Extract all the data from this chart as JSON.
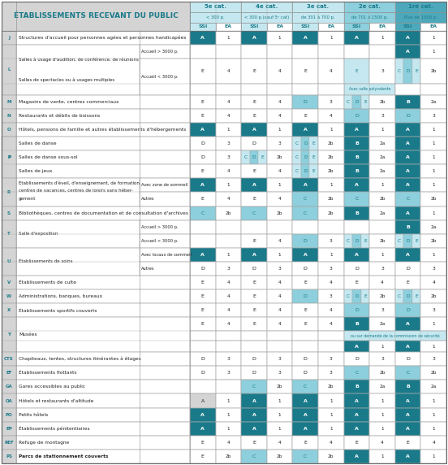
{
  "title": "ÉTABLISSEMENTS RECEVANT DU PUBLIC",
  "cat_headers": [
    "5e cat.",
    "4e cat.",
    "3e cat.",
    "2e cat.",
    "1re cat."
  ],
  "sub_headers": [
    "< 300 p.",
    "< 300 p.(sauf 5ᵉ cat)",
    "de 301 à 700 p.",
    "de 701 à 1500 p.",
    "Plus de 1500 p."
  ],
  "col_labels": [
    "SSI",
    "EA",
    "SSI",
    "EA",
    "SSI",
    "EA",
    "SSI",
    "EA",
    "SSI",
    "EA"
  ],
  "col_dark": "#1a7a8a",
  "col_medium": "#4da8bb",
  "col_light": "#8dcfdc",
  "col_vlight": "#c5e8f0",
  "col_gray": "#d4d4d4",
  "col_white": "#ffffff",
  "col_text": "#222222",
  "col_border": "#aaaaaa",
  "rows": [
    {
      "id": "J",
      "label": "Structures d'accueil pour personnes agées et personnes handicapées",
      "type": "simple",
      "cells": [
        [
          "A",
          "dk",
          "1"
        ],
        [
          "A",
          "dk",
          "1"
        ],
        [
          "A",
          "dk",
          "1"
        ],
        [
          "A",
          "dk",
          "1"
        ],
        [
          "A",
          "dk",
          "1"
        ]
      ]
    },
    {
      "id": "L",
      "label": "Salles à usage d'audition, de conférence, de réunions\nSalles de spectacles ou à usages multiples",
      "type": "L",
      "subs": [
        "Accueil > 3000 p.",
        "Accueil < 3000 p."
      ],
      "sub_cells": [
        [
          [
            "",
            "",
            ""
          ],
          [
            "",
            "",
            ""
          ],
          [
            "",
            "",
            ""
          ],
          [
            "",
            "",
            ""
          ],
          [
            "A",
            "dk",
            "1"
          ]
        ],
        [
          [
            "E",
            "",
            "4"
          ],
          [
            "E",
            "",
            "4"
          ],
          [
            "E",
            "",
            "4"
          ],
          [
            "E_poly",
            "lt",
            "3"
          ],
          [
            "CDE",
            "mx",
            "2b"
          ]
        ]
      ]
    },
    {
      "id": "M",
      "label": "Magasins de vente, centres commerciaux",
      "type": "simple",
      "cells": [
        [
          "E",
          "",
          "4"
        ],
        [
          "E",
          "",
          "4"
        ],
        [
          "D",
          "lt",
          "3"
        ],
        [
          "CDE",
          "mx",
          "2b"
        ],
        [
          "B",
          "dk",
          "2a"
        ]
      ]
    },
    {
      "id": "N",
      "label": "Restaurants et débits de boissons",
      "type": "simple",
      "cells": [
        [
          "E",
          "",
          "4"
        ],
        [
          "E",
          "",
          "4"
        ],
        [
          "E",
          "",
          "4"
        ],
        [
          "D",
          "lt",
          "3"
        ],
        [
          "D",
          "lt",
          "3"
        ]
      ]
    },
    {
      "id": "O",
      "label": "Hôtels, pensions de famille et autres établissements d'hébergements",
      "type": "simple",
      "cells": [
        [
          "A",
          "dk",
          "1"
        ],
        [
          "A",
          "dk",
          "1"
        ],
        [
          "A",
          "dk",
          "1"
        ],
        [
          "A",
          "dk",
          "1"
        ],
        [
          "A",
          "dk",
          "1"
        ]
      ]
    },
    {
      "id": "P",
      "label": "",
      "type": "parts",
      "parts": [
        {
          "label": "Salles de danse",
          "cells": [
            [
              "D",
              "",
              "3"
            ],
            [
              "D",
              "",
              "3"
            ],
            [
              "CDE",
              "mx",
              "2b"
            ],
            [
              "B",
              "dk",
              "2a"
            ],
            [
              "A",
              "dk",
              "1"
            ]
          ]
        },
        {
          "label": "Salles de danse sous-sol",
          "cells": [
            [
              "D",
              "",
              "3"
            ],
            [
              "CDE",
              "mx",
              "2b"
            ],
            [
              "CDE",
              "mx",
              "2b"
            ],
            [
              "B",
              "dk",
              "2a"
            ],
            [
              "A",
              "dk",
              "1"
            ]
          ]
        },
        {
          "label": "Salles de jeux",
          "cells": [
            [
              "E",
              "",
              "4"
            ],
            [
              "E",
              "",
              "4"
            ],
            [
              "CDE",
              "mx",
              "2b"
            ],
            [
              "B",
              "dk",
              "2a"
            ],
            [
              "A",
              "dk",
              "1"
            ]
          ]
        }
      ]
    },
    {
      "id": "R",
      "label": "Établissements d'éveil, d'enseignement, de formation,\ncentres de vacances, centres de loisirs sans héber-\ngement",
      "type": "sub2",
      "subs": [
        "Avec zone de sommeil",
        "Autres"
      ],
      "sub_cells": [
        [
          [
            "A",
            "dk",
            "1"
          ],
          [
            "A",
            "dk",
            "1"
          ],
          [
            "A",
            "dk",
            "1"
          ],
          [
            "A",
            "dk",
            "1"
          ],
          [
            "A",
            "dk",
            "1"
          ]
        ],
        [
          [
            "E",
            "",
            "4"
          ],
          [
            "E",
            "",
            "4"
          ],
          [
            "C",
            "lt",
            "2b"
          ],
          [
            "C",
            "lt",
            "2b"
          ],
          [
            "C",
            "lt",
            "2b"
          ]
        ]
      ]
    },
    {
      "id": "S",
      "label": "Bibliothèques, centres de documentation et de consultation d'archives",
      "type": "simple",
      "cells": [
        [
          "C",
          "lt",
          "2b"
        ],
        [
          "C",
          "lt",
          "2b"
        ],
        [
          "C",
          "lt",
          "2b"
        ],
        [
          "B",
          "dk",
          "2a"
        ],
        [
          "A",
          "dk",
          "1"
        ]
      ]
    },
    {
      "id": "T",
      "label": "Salle d'exposition",
      "type": "sub2",
      "subs": [
        "Accueil > 3000 p.",
        "Accueil < 3000 p."
      ],
      "sub_cells": [
        [
          [
            "",
            "",
            ""
          ],
          [
            "",
            "",
            ""
          ],
          [
            "",
            "",
            ""
          ],
          [
            "",
            "",
            ""
          ],
          [
            "B",
            "dk",
            "2a"
          ]
        ],
        [
          [
            "",
            "",
            ""
          ],
          [
            "E",
            "",
            "4"
          ],
          [
            "D",
            "lt",
            "3"
          ],
          [
            "CDE",
            "mx",
            "2b"
          ],
          [
            "CDE",
            "mx",
            "2b"
          ]
        ]
      ]
    },
    {
      "id": "U",
      "label": "Établissements de soins",
      "type": "sub2",
      "subs": [
        "Avec locaux de sommeil",
        "Autres"
      ],
      "sub_cells": [
        [
          [
            "A",
            "dk",
            "1"
          ],
          [
            "A",
            "dk",
            "1"
          ],
          [
            "A",
            "dk",
            "1"
          ],
          [
            "A",
            "dk",
            "1"
          ],
          [
            "A",
            "dk",
            "1"
          ]
        ],
        [
          [
            "D",
            "",
            "3"
          ],
          [
            "D",
            "",
            "3"
          ],
          [
            "D",
            "",
            "3"
          ],
          [
            "D",
            "",
            "3"
          ],
          [
            "D",
            "",
            "3"
          ]
        ]
      ]
    },
    {
      "id": "V",
      "label": "Établissements de culte",
      "type": "simple",
      "cells": [
        [
          "E",
          "",
          "4"
        ],
        [
          "E",
          "",
          "4"
        ],
        [
          "E",
          "",
          "4"
        ],
        [
          "E",
          "",
          "4"
        ],
        [
          "E",
          "",
          "4"
        ]
      ]
    },
    {
      "id": "W",
      "label": "Administrations, banques, bureaux",
      "type": "simple",
      "cells": [
        [
          "E",
          "",
          "4"
        ],
        [
          "E",
          "",
          "4"
        ],
        [
          "D",
          "lt",
          "3"
        ],
        [
          "CDE",
          "mx",
          "2b"
        ],
        [
          "CDE",
          "mx",
          "2b"
        ]
      ]
    },
    {
      "id": "X",
      "label": "Établissements sportifs couverts",
      "type": "simple",
      "cells": [
        [
          "E",
          "",
          "4"
        ],
        [
          "E",
          "",
          "4"
        ],
        [
          "E",
          "",
          "4"
        ],
        [
          "D",
          "lt",
          "3"
        ],
        [
          "D",
          "lt",
          "3"
        ]
      ]
    },
    {
      "id": "Y",
      "label": "Musées",
      "type": "Y",
      "cells": [
        [
          "E",
          "",
          "4"
        ],
        [
          "E",
          "",
          "4"
        ],
        [
          "E",
          "",
          "4"
        ],
        [
          "B",
          "dk",
          "2a"
        ],
        [
          "A",
          "dk",
          "1"
        ]
      ]
    },
    {
      "id": "CTS",
      "label": "Chapiteaux, tentes, structures itinérantes à étages",
      "type": "simple",
      "cells": [
        [
          "D",
          "",
          "3"
        ],
        [
          "D",
          "",
          "3"
        ],
        [
          "D",
          "",
          "3"
        ],
        [
          "D",
          "",
          "3"
        ],
        [
          "D",
          "",
          "3"
        ]
      ]
    },
    {
      "id": "EF",
      "label": "Établissements flottants",
      "type": "simple",
      "cells": [
        [
          "D",
          "",
          "3"
        ],
        [
          "D",
          "",
          "3"
        ],
        [
          "D",
          "",
          "3"
        ],
        [
          "C",
          "lt",
          "2b"
        ],
        [
          "C",
          "lt",
          "2b"
        ]
      ]
    },
    {
      "id": "GA",
      "label": "Gares accessibles au public",
      "type": "simple",
      "cells": [
        [
          "",
          "",
          ""
        ],
        [
          "C",
          "lt",
          "2b"
        ],
        [
          "C",
          "lt",
          "2b"
        ],
        [
          "B",
          "dk",
          "2a"
        ],
        [
          "B",
          "dk",
          "2a"
        ]
      ]
    },
    {
      "id": "OA",
      "label": "Hôtels et restaurants d'altitude",
      "type": "simple",
      "cells": [
        [
          "A",
          "gy",
          "1"
        ],
        [
          "A",
          "dk",
          "1"
        ],
        [
          "A",
          "dk",
          "1"
        ],
        [
          "A",
          "dk",
          "1"
        ],
        [
          "A",
          "dk",
          "1"
        ]
      ]
    },
    {
      "id": "PO",
      "label": "Petits hôtels",
      "type": "simple",
      "cells": [
        [
          "A",
          "dk",
          "1"
        ],
        [
          "A",
          "dk",
          "1"
        ],
        [
          "A",
          "dk",
          "1"
        ],
        [
          "A",
          "dk",
          "1"
        ],
        [
          "A",
          "dk",
          "1"
        ]
      ]
    },
    {
      "id": "EP",
      "label": "Établissements pénitentiaires",
      "type": "simple",
      "cells": [
        [
          "A",
          "dk",
          "1"
        ],
        [
          "A",
          "dk",
          "1"
        ],
        [
          "A",
          "dk",
          "1"
        ],
        [
          "A",
          "dk",
          "1"
        ],
        [
          "A",
          "dk",
          "1"
        ]
      ]
    },
    {
      "id": "REF",
      "label": "Refuge de montagne",
      "type": "simple",
      "cells": [
        [
          "E",
          "",
          "4"
        ],
        [
          "E",
          "",
          "4"
        ],
        [
          "E",
          "",
          "4"
        ],
        [
          "E",
          "",
          "4"
        ],
        [
          "E",
          "",
          "4"
        ]
      ]
    },
    {
      "id": "PS",
      "label": "Parcs de stationnement couverts",
      "type": "simple",
      "bold": true,
      "cells": [
        [
          "E",
          "",
          "2b"
        ],
        [
          "C",
          "lt",
          "2b"
        ],
        [
          "C",
          "lt",
          "2b"
        ],
        [
          "A",
          "dk",
          "1"
        ],
        [
          "A",
          "dk",
          "1"
        ]
      ]
    }
  ]
}
